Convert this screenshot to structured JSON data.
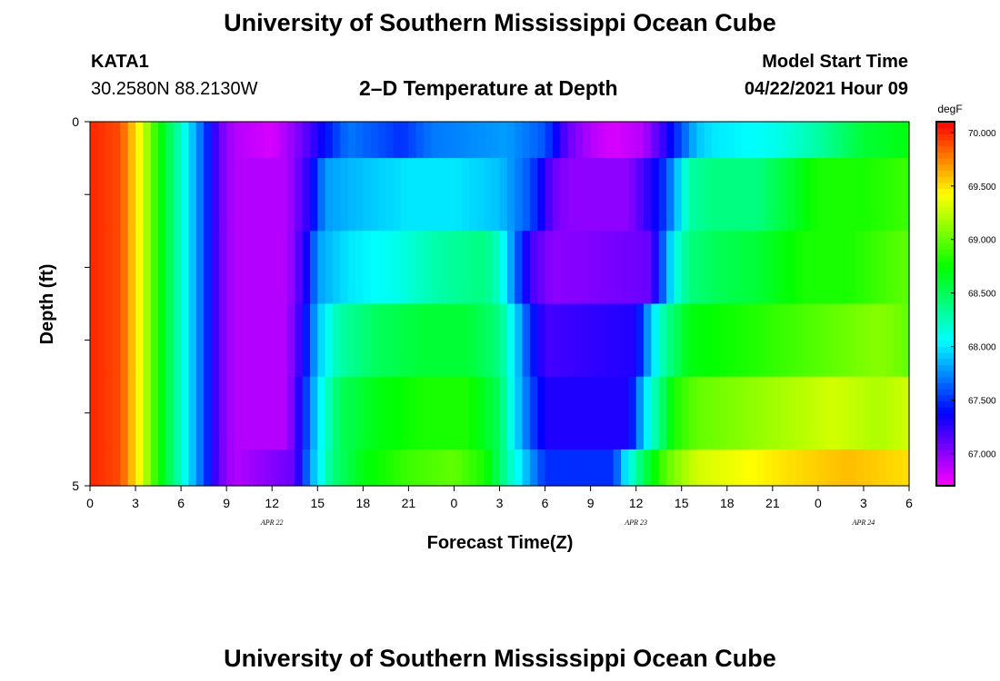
{
  "page": {
    "title_top": "University of Southern Mississippi Ocean Cube",
    "title_bottom": "University of Southern Mississippi Ocean Cube",
    "station_id": "KATA1",
    "station_coords": "30.2580N  88.2130W",
    "plot_title": "2–D Temperature at Depth",
    "model_start_label": "Model Start Time",
    "model_start_value": "04/22/2021 Hour 09"
  },
  "chart_data": {
    "type": "heatmap",
    "title": "2–D Temperature at Depth",
    "xlabel": "Forecast Time(Z)",
    "ylabel": "Depth (ft)",
    "x_hours": [
      0,
      54
    ],
    "ylim": [
      0,
      5
    ],
    "x_tick_labels": [
      "0",
      "3",
      "6",
      "9",
      "12",
      "15",
      "18",
      "21",
      "0",
      "3",
      "6",
      "9",
      "12",
      "15",
      "18",
      "21",
      "0",
      "3",
      "6"
    ],
    "y_tick_labels": [
      "0",
      "5"
    ],
    "date_labels": [
      {
        "text": "APR  22",
        "hour": 12
      },
      {
        "text": "APR  23",
        "hour": 36
      },
      {
        "text": "APR  24",
        "hour": 51
      }
    ],
    "colorbar": {
      "unit": "degF",
      "min": 66.7,
      "max": 70.1,
      "tick_labels": [
        "70.000",
        "69.500",
        "69.000",
        "68.500",
        "68.000",
        "67.500",
        "67.000"
      ],
      "tick_values": [
        70.0,
        69.5,
        69.0,
        68.5,
        68.0,
        67.5,
        67.0
      ]
    },
    "layers": [
      {
        "depth_range": [
          0,
          0.5
        ],
        "profile": [
          [
            0,
            70.0
          ],
          [
            2,
            69.9
          ],
          [
            3.5,
            69.3
          ],
          [
            4.5,
            68.8
          ],
          [
            5.5,
            68.4
          ],
          [
            6.5,
            68.0
          ],
          [
            7.5,
            67.6
          ],
          [
            8.5,
            67.1
          ],
          [
            9.5,
            66.9
          ],
          [
            12,
            66.8
          ],
          [
            13.5,
            67.0
          ],
          [
            15,
            67.3
          ],
          [
            17,
            67.7
          ],
          [
            19,
            67.6
          ],
          [
            20.5,
            67.5
          ],
          [
            22.5,
            67.7
          ],
          [
            27.5,
            67.8
          ],
          [
            30,
            67.6
          ],
          [
            31.5,
            67.1
          ],
          [
            33,
            66.9
          ],
          [
            34.5,
            66.8
          ],
          [
            36.5,
            66.9
          ],
          [
            38,
            67.3
          ],
          [
            39,
            67.6
          ],
          [
            40,
            67.9
          ],
          [
            41,
            68.0
          ],
          [
            45,
            68.1
          ],
          [
            48,
            68.3
          ],
          [
            51,
            68.6
          ],
          [
            54,
            68.7
          ]
        ]
      },
      {
        "depth_range": [
          0.5,
          1.5
        ],
        "profile": [
          [
            0,
            70.0
          ],
          [
            2,
            69.9
          ],
          [
            3.5,
            69.3
          ],
          [
            4.5,
            68.8
          ],
          [
            5.5,
            68.4
          ],
          [
            6.5,
            68.0
          ],
          [
            7.5,
            67.6
          ],
          [
            8.5,
            67.1
          ],
          [
            9.5,
            66.9
          ],
          [
            13,
            66.9
          ],
          [
            14.5,
            67.3
          ],
          [
            15.5,
            67.8
          ],
          [
            18,
            67.9
          ],
          [
            21,
            68.0
          ],
          [
            24,
            68.0
          ],
          [
            27,
            67.9
          ],
          [
            29,
            67.6
          ],
          [
            30.5,
            67.1
          ],
          [
            31.5,
            67.0
          ],
          [
            35.5,
            67.0
          ],
          [
            37.5,
            67.4
          ],
          [
            38.5,
            67.8
          ],
          [
            39.5,
            68.3
          ],
          [
            41,
            68.4
          ],
          [
            44,
            68.4
          ],
          [
            46,
            68.6
          ],
          [
            48,
            68.8
          ],
          [
            51,
            68.8
          ],
          [
            54,
            68.9
          ]
        ]
      },
      {
        "depth_range": [
          1.5,
          2.5
        ],
        "profile": [
          [
            0,
            70.0
          ],
          [
            2,
            69.9
          ],
          [
            3.5,
            69.3
          ],
          [
            4.5,
            68.8
          ],
          [
            5.5,
            68.4
          ],
          [
            6.5,
            68.0
          ],
          [
            7.5,
            67.6
          ],
          [
            8.5,
            67.1
          ],
          [
            9.5,
            66.9
          ],
          [
            13,
            66.9
          ],
          [
            14.2,
            67.3
          ],
          [
            15,
            67.8
          ],
          [
            17,
            68.0
          ],
          [
            20,
            68.1
          ],
          [
            23,
            68.3
          ],
          [
            26,
            68.4
          ],
          [
            27,
            68.2
          ],
          [
            28,
            67.7
          ],
          [
            29,
            67.2
          ],
          [
            30.5,
            67.0
          ],
          [
            37,
            67.1
          ],
          [
            37.7,
            67.6
          ],
          [
            38.5,
            68.1
          ],
          [
            39.5,
            68.4
          ],
          [
            41,
            68.5
          ],
          [
            44,
            68.6
          ],
          [
            47,
            68.8
          ],
          [
            50,
            68.8
          ],
          [
            54,
            69.0
          ]
        ]
      },
      {
        "depth_range": [
          2.5,
          3.5
        ],
        "profile": [
          [
            0,
            70.0
          ],
          [
            2,
            69.9
          ],
          [
            3.5,
            69.3
          ],
          [
            4.5,
            68.8
          ],
          [
            5.5,
            68.4
          ],
          [
            6.5,
            68.0
          ],
          [
            7.5,
            67.6
          ],
          [
            8.5,
            67.1
          ],
          [
            9.5,
            66.9
          ],
          [
            13,
            66.9
          ],
          [
            14,
            67.3
          ],
          [
            15,
            67.9
          ],
          [
            16.5,
            68.3
          ],
          [
            19,
            68.5
          ],
          [
            22,
            68.6
          ],
          [
            25,
            68.6
          ],
          [
            27,
            68.4
          ],
          [
            28,
            68.0
          ],
          [
            29,
            67.5
          ],
          [
            30,
            67.2
          ],
          [
            36,
            67.3
          ],
          [
            36.8,
            67.8
          ],
          [
            37.8,
            68.3
          ],
          [
            39.5,
            68.7
          ],
          [
            43,
            68.8
          ],
          [
            46,
            68.9
          ],
          [
            49,
            69.0
          ],
          [
            52,
            69.1
          ],
          [
            54,
            69.0
          ]
        ]
      },
      {
        "depth_range": [
          3.5,
          4.5
        ],
        "profile": [
          [
            0,
            70.0
          ],
          [
            2,
            69.9
          ],
          [
            3.5,
            69.3
          ],
          [
            4.5,
            68.8
          ],
          [
            5.5,
            68.4
          ],
          [
            6.5,
            68.0
          ],
          [
            7.5,
            67.6
          ],
          [
            8.5,
            67.1
          ],
          [
            9.5,
            66.9
          ],
          [
            13,
            66.9
          ],
          [
            14,
            67.4
          ],
          [
            15,
            68.0
          ],
          [
            16.5,
            68.5
          ],
          [
            19,
            68.7
          ],
          [
            22,
            68.8
          ],
          [
            25,
            68.8
          ],
          [
            27,
            68.5
          ],
          [
            28,
            68.0
          ],
          [
            29,
            67.6
          ],
          [
            30,
            67.3
          ],
          [
            35.5,
            67.3
          ],
          [
            36.3,
            67.8
          ],
          [
            37.3,
            68.3
          ],
          [
            38.5,
            68.8
          ],
          [
            40,
            69.0
          ],
          [
            43,
            69.1
          ],
          [
            46,
            69.2
          ],
          [
            49,
            69.3
          ],
          [
            52,
            69.2
          ],
          [
            54,
            69.3
          ]
        ]
      },
      {
        "depth_range": [
          4.5,
          5.0
        ],
        "profile": [
          [
            0,
            70.0
          ],
          [
            2,
            69.9
          ],
          [
            3.5,
            69.3
          ],
          [
            4.5,
            68.8
          ],
          [
            5.5,
            68.4
          ],
          [
            6.5,
            68.0
          ],
          [
            7.5,
            67.6
          ],
          [
            8.5,
            67.1
          ],
          [
            9.5,
            66.9
          ],
          [
            13.5,
            67.1
          ],
          [
            14.5,
            67.8
          ],
          [
            16,
            68.4
          ],
          [
            18,
            68.7
          ],
          [
            21,
            68.9
          ],
          [
            24,
            69.0
          ],
          [
            26,
            68.8
          ],
          [
            27.5,
            68.3
          ],
          [
            29,
            67.8
          ],
          [
            30,
            67.5
          ],
          [
            34.5,
            67.5
          ],
          [
            35.3,
            68.0
          ],
          [
            36.5,
            68.5
          ],
          [
            38,
            69.0
          ],
          [
            40,
            69.3
          ],
          [
            43,
            69.4
          ],
          [
            46,
            69.5
          ],
          [
            50,
            69.6
          ],
          [
            54,
            69.5
          ]
        ]
      }
    ]
  }
}
